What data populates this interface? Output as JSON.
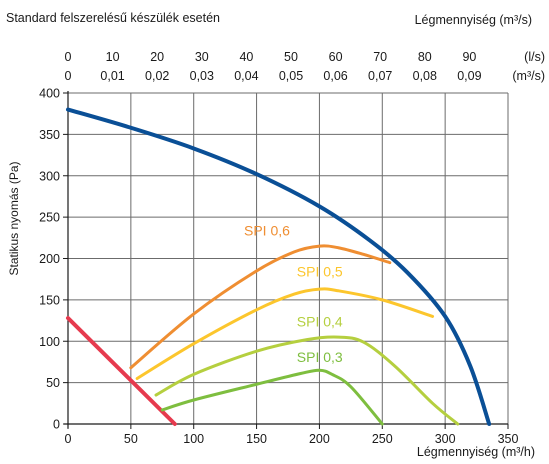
{
  "header": {
    "title": "Standard felszerelésű készülék esetén",
    "top_axis_label": "Légmennyiség (m³/s)"
  },
  "chart_data": {
    "type": "line",
    "xlabel": "Légmennyiség (m³/h)",
    "ylabel": "Statikus nyomás (Pa)",
    "xlim": [
      0,
      350
    ],
    "ylim": [
      0,
      400
    ],
    "x_ticks": [
      0,
      50,
      100,
      150,
      200,
      250,
      300,
      350
    ],
    "y_ticks": [
      0,
      50,
      100,
      150,
      200,
      250,
      300,
      350,
      400
    ],
    "grid": true,
    "top_axis_ls": {
      "unit": "(l/s)",
      "ticks": [
        "0",
        "10",
        "20",
        "30",
        "40",
        "50",
        "60",
        "70",
        "80",
        "90"
      ],
      "values": [
        0,
        10,
        20,
        30,
        40,
        50,
        60,
        70,
        80,
        90
      ]
    },
    "top_axis_m3s": {
      "unit": "(m³/s)",
      "ticks": [
        "0",
        "0,01",
        "0,02",
        "0,03",
        "0,04",
        "0,05",
        "0,06",
        "0,07",
        "0,08",
        "0,09"
      ],
      "values": [
        0,
        0.01,
        0.02,
        0.03,
        0.04,
        0.05,
        0.06,
        0.07,
        0.08,
        0.09
      ]
    },
    "series": [
      {
        "key": "fan-curve",
        "color": "#0a4f96",
        "width": 4,
        "points": [
          [
            0,
            380
          ],
          [
            50,
            358
          ],
          [
            100,
            333
          ],
          [
            150,
            302
          ],
          [
            200,
            263
          ],
          [
            240,
            222
          ],
          [
            270,
            183
          ],
          [
            300,
            130
          ],
          [
            320,
            70
          ],
          [
            335,
            0
          ]
        ]
      },
      {
        "key": "min-limit",
        "color": "#e63a4e",
        "width": 4,
        "points": [
          [
            0,
            128
          ],
          [
            85,
            0
          ]
        ]
      },
      {
        "key": "spi-06",
        "name": "SPI 0,6",
        "color": "#ef8e32",
        "width": 3,
        "label_at": [
          140,
          228
        ],
        "points": [
          [
            50,
            68
          ],
          [
            100,
            133
          ],
          [
            150,
            185
          ],
          [
            180,
            208
          ],
          [
            200,
            215
          ],
          [
            215,
            213
          ],
          [
            235,
            205
          ],
          [
            256,
            195
          ]
        ]
      },
      {
        "key": "spi-05",
        "name": "SPI 0,5",
        "color": "#fcc62d",
        "width": 3,
        "label_at": [
          182,
          178
        ],
        "points": [
          [
            55,
            55
          ],
          [
            100,
            97
          ],
          [
            150,
            138
          ],
          [
            180,
            157
          ],
          [
            200,
            163
          ],
          [
            215,
            161
          ],
          [
            250,
            150
          ],
          [
            290,
            130
          ]
        ]
      },
      {
        "key": "spi-04",
        "name": "SPI 0,4",
        "color": "#b5cf3f",
        "width": 3,
        "label_at": [
          182,
          118
        ],
        "points": [
          [
            70,
            35
          ],
          [
            100,
            60
          ],
          [
            150,
            88
          ],
          [
            190,
            102
          ],
          [
            215,
            105
          ],
          [
            235,
            99
          ],
          [
            260,
            70
          ],
          [
            290,
            25
          ],
          [
            310,
            0
          ]
        ]
      },
      {
        "key": "spi-03",
        "name": "SPI 0,3",
        "color": "#7ebe3f",
        "width": 3,
        "label_at": [
          182,
          75
        ],
        "points": [
          [
            75,
            17
          ],
          [
            100,
            29
          ],
          [
            150,
            48
          ],
          [
            185,
            61
          ],
          [
            200,
            65
          ],
          [
            210,
            60
          ],
          [
            225,
            45
          ],
          [
            250,
            0
          ]
        ]
      }
    ]
  }
}
